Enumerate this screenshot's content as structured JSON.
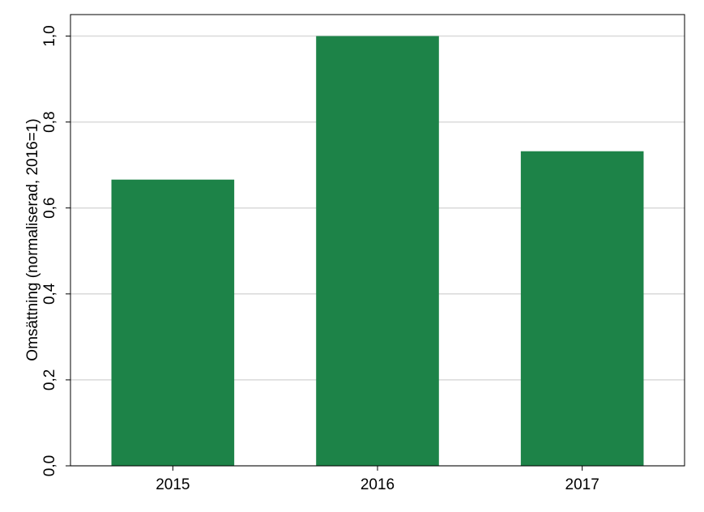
{
  "chart_data": {
    "type": "bar",
    "ylabel": "Omsättning (normaliserad, 2016=1)",
    "categories": [
      "2015",
      "2016",
      "2017"
    ],
    "values": [
      0.666,
      1.0,
      0.732
    ],
    "color": "#1d8348",
    "ylim": [
      0,
      1.05
    ],
    "yticks": [
      {
        "value": 0,
        "label": "0,0"
      },
      {
        "value": 0.2,
        "label": "0,2"
      },
      {
        "value": 0.4,
        "label": "0,4"
      },
      {
        "value": 0.6,
        "label": "0,6"
      },
      {
        "value": 0.8,
        "label": "0,8"
      },
      {
        "value": 1.0,
        "label": "1,0"
      }
    ],
    "grid": true
  }
}
